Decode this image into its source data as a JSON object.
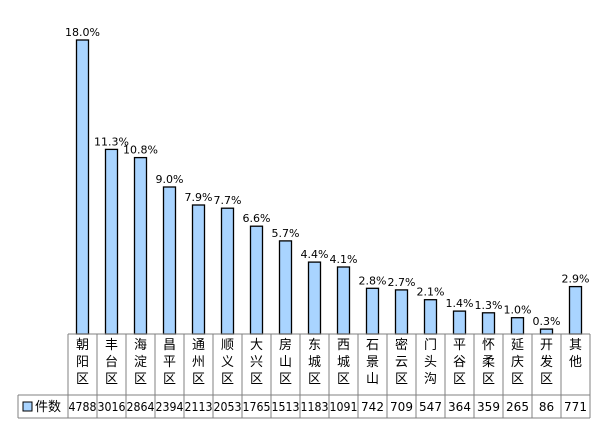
{
  "chart_data": {
    "type": "bar",
    "categories": [
      "朝阳区",
      "丰台区",
      "海淀区",
      "昌平区",
      "通州区",
      "顺义区",
      "大兴区",
      "房山区",
      "东城区",
      "西城区",
      "石景山",
      "密云区",
      "门头沟",
      "平谷区",
      "怀柔区",
      "延庆区",
      "开发区",
      "其他"
    ],
    "series": [
      {
        "name": "件数",
        "values": [
          4788,
          3016,
          2864,
          2394,
          2113,
          2053,
          1765,
          1513,
          1183,
          1091,
          742,
          709,
          547,
          364,
          359,
          265,
          86,
          771
        ],
        "data_labels": [
          "18.0%",
          "11.3%",
          "10.8%",
          "9.0%",
          "7.9%",
          "7.7%",
          "6.6%",
          "5.7%",
          "4.4%",
          "4.1%",
          "2.8%",
          "2.7%",
          "2.1%",
          "1.4%",
          "1.3%",
          "1.0%",
          "0.3%",
          "2.9%"
        ]
      }
    ],
    "percent_values": [
      18.0,
      11.3,
      10.8,
      9.0,
      7.9,
      7.7,
      6.6,
      5.7,
      4.4,
      4.1,
      2.8,
      2.7,
      2.1,
      1.4,
      1.3,
      1.0,
      0.3,
      2.9
    ],
    "ylim": [
      0,
      18.0
    ],
    "grid": false,
    "legend": {
      "placement": "bottom-left-in-table",
      "entries": [
        "件数"
      ]
    },
    "bar_color": "#a9d4ff",
    "bar_outline": "#000000"
  }
}
